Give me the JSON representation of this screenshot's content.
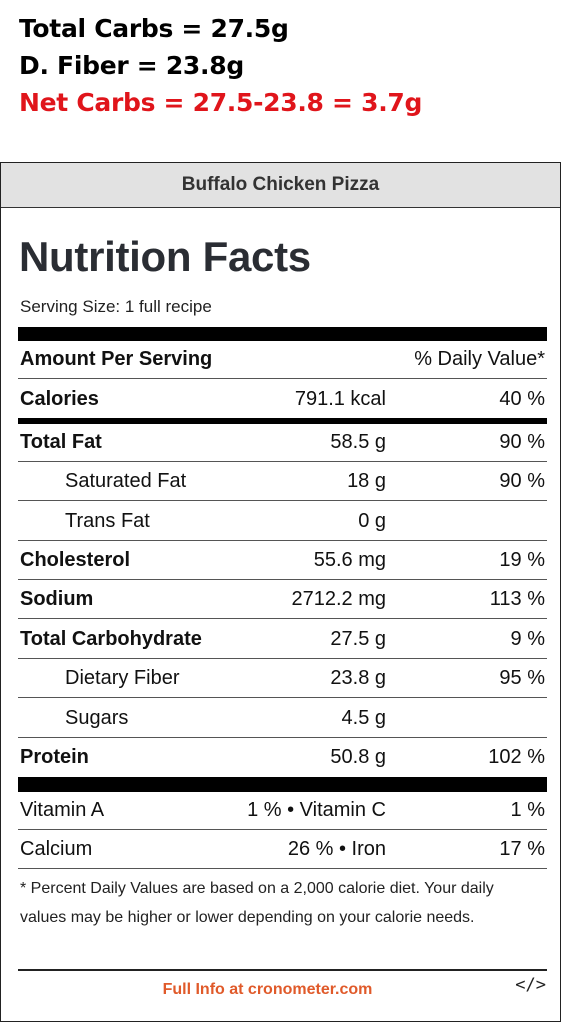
{
  "annotation": {
    "total_carbs": "Total Carbs = 27.5g",
    "fiber": "D. Fiber = 23.8g",
    "net_carbs": "Net Carbs = 27.5-23.8 = 3.7g"
  },
  "label": {
    "recipe_name": "Buffalo Chicken Pizza",
    "title": "Nutrition Facts",
    "serving_size": "Serving Size: 1 full recipe",
    "amount_per_serving": "Amount Per Serving",
    "daily_value_header": "% Daily Value*",
    "rows": [
      {
        "name": "Calories",
        "amount": "791.1 kcal",
        "dv": "40 %"
      },
      {
        "name": "Total Fat",
        "amount": "58.5 g",
        "dv": "90 %"
      },
      {
        "name": "Saturated Fat",
        "amount": "18 g",
        "dv": "90 %"
      },
      {
        "name": "Trans Fat",
        "amount": "0 g",
        "dv": ""
      },
      {
        "name": "Cholesterol",
        "amount": "55.6 mg",
        "dv": "19 %"
      },
      {
        "name": "Sodium",
        "amount": "2712.2 mg",
        "dv": "113 %"
      },
      {
        "name": "Total Carbohydrate",
        "amount": "27.5 g",
        "dv": "9 %"
      },
      {
        "name": "Dietary Fiber",
        "amount": "23.8 g",
        "dv": "95 %"
      },
      {
        "name": "Sugars",
        "amount": "4.5 g",
        "dv": ""
      },
      {
        "name": "Protein",
        "amount": "50.8 g",
        "dv": "102 %"
      }
    ],
    "vitamins": [
      {
        "name1": "Vitamin A",
        "val1": "1 % • Vitamin C",
        "val2": "1 %"
      },
      {
        "name1": "Calcium",
        "val1": "26 % • Iron",
        "val2": "17 %"
      }
    ],
    "footnote": "* Percent Daily Values are based on a 2,000 calorie diet. Your daily values may be higher or lower depending on your calorie needs.",
    "full_info": "Full Info at cronometer.com",
    "embed": "</>"
  }
}
